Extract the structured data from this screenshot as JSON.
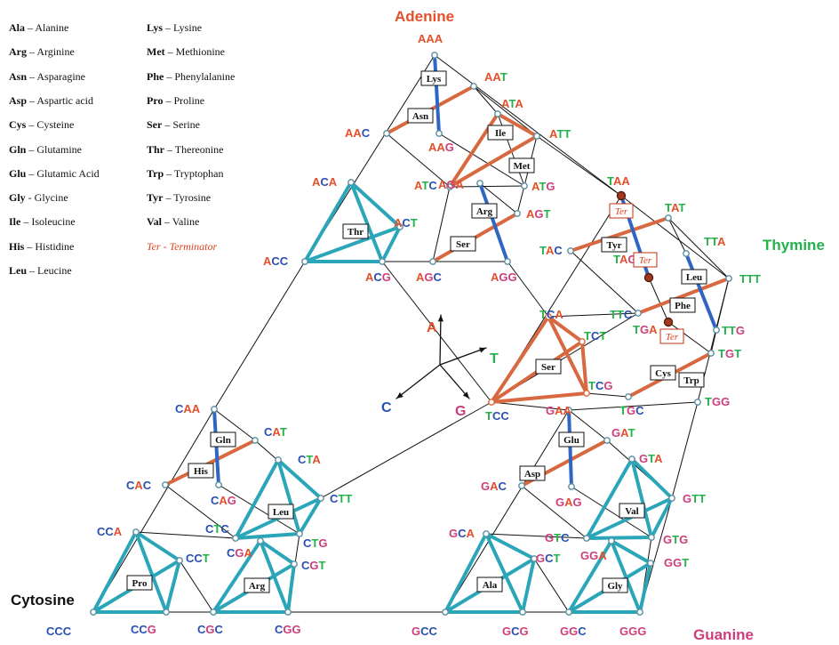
{
  "corners": {
    "adenine": "Adenine",
    "thymine": "Thymine",
    "cytosine": "Cytosine",
    "guanine": "Guanine"
  },
  "axes": {
    "a": "A",
    "t": "T",
    "c": "C",
    "g": "G"
  },
  "colors": {
    "A": "#e4502b",
    "T": "#23b24b",
    "C": "#2a4fb0",
    "G": "#cc3f7c",
    "cyan": "#2aa6b8",
    "orange": "#d86840",
    "blue": "#2f66c4",
    "frame": "#111111",
    "terminator": "#e04020"
  },
  "legend": [
    {
      "abbr": "Ala",
      "sep": " – ",
      "name": "Alanine"
    },
    {
      "abbr": "Arg",
      "sep": " – ",
      "name": "Arginine"
    },
    {
      "abbr": "Asn",
      "sep": " – ",
      "name": "Asparagine"
    },
    {
      "abbr": "Asp",
      "sep": " – ",
      "name": "Aspartic acid"
    },
    {
      "abbr": "Cys",
      "sep": " – ",
      "name": "Cysteine"
    },
    {
      "abbr": "Gln",
      "sep": " – ",
      "name": "Glutamine"
    },
    {
      "abbr": "Glu",
      "sep": " – ",
      "name": "Glutamic Acid"
    },
    {
      "abbr": "Gly",
      "sep": " - ",
      "name": "Glycine"
    },
    {
      "abbr": "Ile",
      "sep": " – ",
      "name": "Isoleucine"
    },
    {
      "abbr": "His",
      "sep": " – ",
      "name": "Histidine"
    },
    {
      "abbr": "Leu",
      "sep": " – ",
      "name": "Leucine"
    },
    {
      "abbr": "Lys",
      "sep": " – ",
      "name": "Lysine"
    },
    {
      "abbr": "Met",
      "sep": " – ",
      "name": "Methionine"
    },
    {
      "abbr": "Phe",
      "sep": " – ",
      "name": "Phenylalanine"
    },
    {
      "abbr": "Pro",
      "sep": " – ",
      "name": "Proline"
    },
    {
      "abbr": "Ser",
      "sep": " – ",
      "name": "Serine"
    },
    {
      "abbr": "Thr",
      "sep": " – ",
      "name": "Thereonine"
    },
    {
      "abbr": "Trp",
      "sep": " – ",
      "name": "Tryptophan"
    },
    {
      "abbr": "Tyr",
      "sep": " – ",
      "name": "Tyrosine"
    },
    {
      "abbr": "Val",
      "sep": " – ",
      "name": "Valine"
    },
    {
      "abbr": "Ter",
      "sep": " - ",
      "name": "Terminator",
      "italic": true
    }
  ],
  "codons": [
    "AAA",
    "AAT",
    "ATA",
    "AAC",
    "AAG",
    "ATT",
    "ACA",
    "ATC",
    "ATG",
    "AGA",
    "AGT",
    "ACT",
    "ACC",
    "ACG",
    "AGC",
    "AGG",
    "TAA",
    "TAT",
    "TTA",
    "TAC",
    "TAG",
    "TTT",
    "TTC",
    "TGA",
    "TTG",
    "TCA",
    "TCT",
    "TGT",
    "TCG",
    "TGC",
    "TGG",
    "TCC",
    "CAA",
    "CAT",
    "CTA",
    "CAC",
    "CAG",
    "CTT",
    "CCA",
    "CTC",
    "CTG",
    "CGA",
    "CGT",
    "CCT",
    "CCC",
    "CCG",
    "CGC",
    "CGG",
    "GAA",
    "GAT",
    "GTA",
    "GAC",
    "GAG",
    "GTT",
    "GCA",
    "GTC",
    "GTG",
    "GGA",
    "GGT",
    "GCT",
    "GCC",
    "GCG",
    "GGC",
    "GGG"
  ],
  "amino_boxes": [
    "Lys",
    "Asn",
    "Ile",
    "Met",
    "Thr",
    "Arg",
    "Ser",
    "Ser",
    "Tyr",
    "Leu",
    "Phe",
    "Cys",
    "Trp",
    "Gln",
    "His",
    "Leu",
    "Pro",
    "Arg",
    "Glu",
    "Asp",
    "Val",
    "Ala",
    "Gly"
  ],
  "terminator_boxes": [
    "Ter",
    "Ter",
    "Ter"
  ]
}
